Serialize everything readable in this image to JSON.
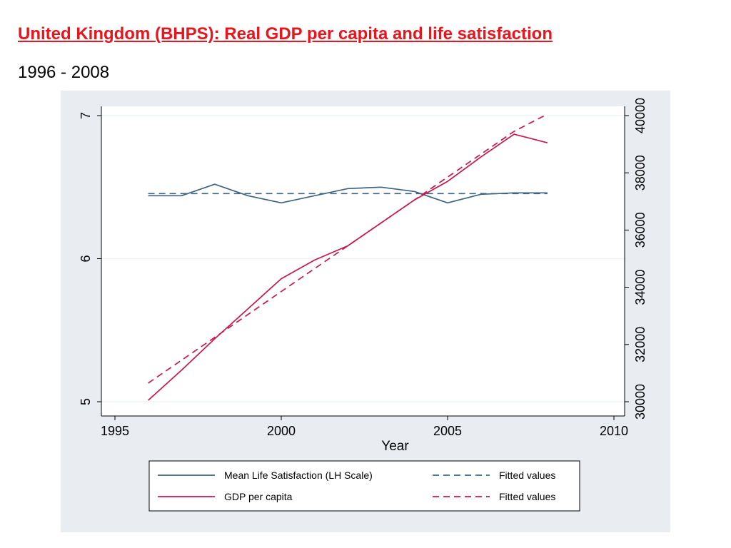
{
  "slide": {
    "title": "United Kingdom (BHPS): Real GDP per capita and life satisfaction",
    "subtitle": "1996 - 2008"
  },
  "colors": {
    "title": "#e8151d",
    "panel_background": "#e9edf1",
    "plot_background": "#ffffff",
    "life_satisfaction": "#3d6483",
    "gdp": "#c8174b"
  },
  "chart_data": {
    "type": "line",
    "xlabel": "Year",
    "xlim": [
      1995,
      2010
    ],
    "x_ticks": [
      1995,
      2000,
      2005,
      2010
    ],
    "y_left": {
      "lim": [
        5,
        7
      ],
      "ticks": [
        5,
        6,
        7
      ]
    },
    "y_right": {
      "lim": [
        30000,
        40000
      ],
      "ticks": [
        30000,
        32000,
        34000,
        36000,
        38000,
        40000
      ]
    },
    "grid": true,
    "legend_position": "bottom",
    "years": [
      1996,
      1997,
      1998,
      1999,
      2000,
      2001,
      2002,
      2003,
      2004,
      2005,
      2006,
      2007,
      2008
    ],
    "series": [
      {
        "name": "Mean Life Satisfaction (LH Scale)",
        "axis": "left",
        "style": "solid",
        "color": "#3d6483",
        "values": [
          6.44,
          6.44,
          6.52,
          6.44,
          6.39,
          6.44,
          6.49,
          6.5,
          6.47,
          6.39,
          6.45,
          6.46,
          6.46
        ]
      },
      {
        "name": "Fitted values",
        "axis": "left",
        "style": "dashed",
        "color": "#3d6483",
        "values": [
          6.455,
          6.455,
          6.455,
          6.455,
          6.455,
          6.455,
          6.455,
          6.455,
          6.455,
          6.455,
          6.455,
          6.455,
          6.455
        ]
      },
      {
        "name": "GDP per capita",
        "axis": "right",
        "style": "solid",
        "color": "#c8174b",
        "values": [
          30050,
          31100,
          32200,
          33250,
          34300,
          34950,
          35450,
          36250,
          37050,
          37700,
          38550,
          39350,
          39050
        ]
      },
      {
        "name": "Fitted values",
        "axis": "right",
        "style": "dashed",
        "color": "#c8174b",
        "values": [
          30650,
          31450,
          32250,
          33050,
          33850,
          34650,
          35450,
          36250,
          37050,
          37850,
          38650,
          39450,
          40050
        ]
      }
    ]
  }
}
